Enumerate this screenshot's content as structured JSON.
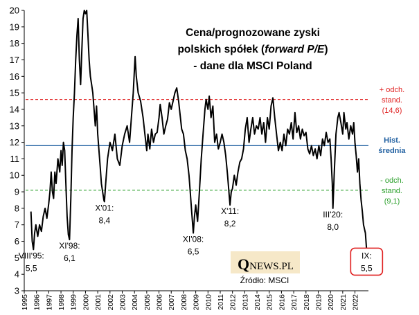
{
  "chart_data": {
    "type": "line",
    "title_lines": [
      "Cena/prognozowane zyski",
      "polskich spółek (",
      "forward P/E",
      ")",
      "- dane dla MSCI Poland"
    ],
    "xlabel": "",
    "ylabel": "",
    "xlim": [
      1995.0,
      2023.1
    ],
    "ylim": [
      3,
      20
    ],
    "yticks": [
      "3",
      "4",
      "5",
      "6",
      "7",
      "8",
      "9",
      "10",
      "11",
      "12",
      "13",
      "14",
      "15",
      "16",
      "17",
      "18",
      "19",
      "20"
    ],
    "xticks": [
      "1995",
      "1996",
      "1997",
      "1998",
      "1999",
      "2000",
      "2001",
      "2002",
      "2003",
      "2004",
      "2005",
      "2006",
      "2007",
      "2008",
      "2009",
      "2010",
      "2011",
      "2012",
      "2013",
      "2014",
      "2015",
      "2016",
      "2017",
      "2018",
      "2019",
      "2020",
      "2021",
      "2022"
    ],
    "grid": false,
    "reference_lines": [
      {
        "name": "+ odch. stand. (14,6)",
        "y": 14.6,
        "color": "#e02020",
        "style": "dashed",
        "label_lines": [
          "+ odch.",
          "stand.",
          "(14,6)"
        ]
      },
      {
        "name": "Hist. średnia",
        "y": 11.8,
        "color": "#1f5fa0",
        "style": "solid",
        "label_lines": [
          "Hist.",
          "średnia"
        ]
      },
      {
        "name": "- odch. stand. (9,1)",
        "y": 9.1,
        "color": "#2ca02c",
        "style": "dashed",
        "label_lines": [
          "- odch.",
          "stand.",
          "(9,1)"
        ]
      }
    ],
    "series": [
      {
        "color": "#000000",
        "points": [
          [
            1995.55,
            7.8
          ],
          [
            1995.65,
            6.0
          ],
          [
            1995.75,
            5.5
          ],
          [
            1995.85,
            6.5
          ],
          [
            1995.95,
            7.0
          ],
          [
            1996.1,
            6.3
          ],
          [
            1996.25,
            7.0
          ],
          [
            1996.4,
            6.6
          ],
          [
            1996.55,
            7.5
          ],
          [
            1996.7,
            8.0
          ],
          [
            1996.85,
            7.4
          ],
          [
            1997.0,
            8.3
          ],
          [
            1997.1,
            9.0
          ],
          [
            1997.2,
            10.2
          ],
          [
            1997.3,
            9.0
          ],
          [
            1997.4,
            8.6
          ],
          [
            1997.5,
            10.2
          ],
          [
            1997.6,
            9.5
          ],
          [
            1997.75,
            11.0
          ],
          [
            1997.9,
            10.2
          ],
          [
            1998.0,
            11.5
          ],
          [
            1998.1,
            10.6
          ],
          [
            1998.2,
            12.0
          ],
          [
            1998.3,
            11.5
          ],
          [
            1998.4,
            9.5
          ],
          [
            1998.5,
            7.5
          ],
          [
            1998.6,
            6.4
          ],
          [
            1998.7,
            6.1
          ],
          [
            1998.8,
            8.5
          ],
          [
            1998.9,
            11.5
          ],
          [
            1999.0,
            13.5
          ],
          [
            1999.1,
            15.0
          ],
          [
            1999.2,
            17.0
          ],
          [
            1999.3,
            18.5
          ],
          [
            1999.4,
            19.5
          ],
          [
            1999.5,
            17.0
          ],
          [
            1999.6,
            15.5
          ],
          [
            1999.7,
            17.5
          ],
          [
            1999.8,
            19.5
          ],
          [
            1999.9,
            20.0
          ],
          [
            2000.0,
            19.8
          ],
          [
            2000.1,
            20.0
          ],
          [
            2000.2,
            18.5
          ],
          [
            2000.3,
            17.0
          ],
          [
            2000.4,
            16.0
          ],
          [
            2000.5,
            15.5
          ],
          [
            2000.6,
            15.0
          ],
          [
            2000.7,
            14.0
          ],
          [
            2000.8,
            13.0
          ],
          [
            2000.9,
            14.2
          ],
          [
            2001.0,
            12.5
          ],
          [
            2001.1,
            11.5
          ],
          [
            2001.2,
            10.5
          ],
          [
            2001.3,
            9.5
          ],
          [
            2001.4,
            9.0
          ],
          [
            2001.5,
            8.5
          ],
          [
            2001.55,
            8.4
          ],
          [
            2001.65,
            9.5
          ],
          [
            2001.8,
            11.0
          ],
          [
            2002.0,
            12.0
          ],
          [
            2002.2,
            11.5
          ],
          [
            2002.4,
            12.5
          ],
          [
            2002.6,
            11.0
          ],
          [
            2002.8,
            10.6
          ],
          [
            2003.0,
            11.8
          ],
          [
            2003.2,
            12.5
          ],
          [
            2003.4,
            13.0
          ],
          [
            2003.6,
            12.0
          ],
          [
            2003.8,
            14.0
          ],
          [
            2003.9,
            15.0
          ],
          [
            2004.0,
            16.5
          ],
          [
            2004.05,
            17.2
          ],
          [
            2004.15,
            16.0
          ],
          [
            2004.3,
            15.0
          ],
          [
            2004.5,
            14.5
          ],
          [
            2004.7,
            13.5
          ],
          [
            2004.85,
            12.5
          ],
          [
            2005.0,
            11.5
          ],
          [
            2005.1,
            12.5
          ],
          [
            2005.25,
            11.6
          ],
          [
            2005.4,
            12.8
          ],
          [
            2005.55,
            12.0
          ],
          [
            2005.7,
            12.5
          ],
          [
            2005.85,
            12.6
          ],
          [
            2006.0,
            13.5
          ],
          [
            2006.1,
            14.3
          ],
          [
            2006.25,
            13.5
          ],
          [
            2006.4,
            12.5
          ],
          [
            2006.55,
            13.0
          ],
          [
            2006.7,
            13.4
          ],
          [
            2006.85,
            14.4
          ],
          [
            2007.0,
            14.0
          ],
          [
            2007.15,
            14.5
          ],
          [
            2007.3,
            15.0
          ],
          [
            2007.45,
            15.3
          ],
          [
            2007.6,
            14.5
          ],
          [
            2007.75,
            13.5
          ],
          [
            2007.85,
            12.8
          ],
          [
            2008.0,
            12.5
          ],
          [
            2008.15,
            11.5
          ],
          [
            2008.3,
            11.0
          ],
          [
            2008.45,
            10.0
          ],
          [
            2008.55,
            9.0
          ],
          [
            2008.65,
            8.0
          ],
          [
            2008.75,
            7.0
          ],
          [
            2008.8,
            6.5
          ],
          [
            2008.9,
            7.5
          ],
          [
            2009.0,
            8.2
          ],
          [
            2009.15,
            7.2
          ],
          [
            2009.3,
            9.0
          ],
          [
            2009.45,
            11.0
          ],
          [
            2009.6,
            12.5
          ],
          [
            2009.75,
            14.0
          ],
          [
            2009.85,
            14.6
          ],
          [
            2010.0,
            14.0
          ],
          [
            2010.1,
            14.8
          ],
          [
            2010.25,
            13.5
          ],
          [
            2010.4,
            14.2
          ],
          [
            2010.55,
            12.0
          ],
          [
            2010.7,
            12.5
          ],
          [
            2010.85,
            11.6
          ],
          [
            2011.0,
            12.0
          ],
          [
            2011.15,
            12.5
          ],
          [
            2011.3,
            12.0
          ],
          [
            2011.45,
            11.2
          ],
          [
            2011.6,
            10.0
          ],
          [
            2011.75,
            8.6
          ],
          [
            2011.8,
            8.2
          ],
          [
            2011.9,
            9.0
          ],
          [
            2012.0,
            9.2
          ],
          [
            2012.15,
            10.0
          ],
          [
            2012.3,
            9.4
          ],
          [
            2012.45,
            10.2
          ],
          [
            2012.6,
            10.8
          ],
          [
            2012.75,
            11.0
          ],
          [
            2012.9,
            11.6
          ],
          [
            2013.05,
            12.8
          ],
          [
            2013.2,
            13.5
          ],
          [
            2013.35,
            12.0
          ],
          [
            2013.5,
            12.8
          ],
          [
            2013.65,
            13.5
          ],
          [
            2013.8,
            12.5
          ],
          [
            2013.95,
            13.0
          ],
          [
            2014.1,
            12.8
          ],
          [
            2014.25,
            13.5
          ],
          [
            2014.4,
            12.5
          ],
          [
            2014.55,
            13.2
          ],
          [
            2014.7,
            12.0
          ],
          [
            2014.85,
            13.5
          ],
          [
            2015.0,
            12.8
          ],
          [
            2015.15,
            14.2
          ],
          [
            2015.3,
            14.7
          ],
          [
            2015.45,
            13.5
          ],
          [
            2015.6,
            12.5
          ],
          [
            2015.75,
            11.5
          ],
          [
            2015.9,
            12.0
          ],
          [
            2016.05,
            11.5
          ],
          [
            2016.2,
            12.5
          ],
          [
            2016.35,
            11.8
          ],
          [
            2016.5,
            12.8
          ],
          [
            2016.65,
            12.5
          ],
          [
            2016.8,
            13.2
          ],
          [
            2016.95,
            12.2
          ],
          [
            2017.1,
            13.8
          ],
          [
            2017.25,
            12.6
          ],
          [
            2017.4,
            13.0
          ],
          [
            2017.55,
            12.2
          ],
          [
            2017.7,
            12.8
          ],
          [
            2017.85,
            12.4
          ],
          [
            2018.0,
            12.6
          ],
          [
            2018.15,
            11.6
          ],
          [
            2018.3,
            11.3
          ],
          [
            2018.45,
            11.8
          ],
          [
            2018.6,
            11.2
          ],
          [
            2018.75,
            11.6
          ],
          [
            2018.9,
            11.0
          ],
          [
            2019.05,
            11.8
          ],
          [
            2019.2,
            11.2
          ],
          [
            2019.35,
            12.2
          ],
          [
            2019.5,
            11.8
          ],
          [
            2019.65,
            12.6
          ],
          [
            2019.8,
            12.0
          ],
          [
            2019.95,
            12.2
          ],
          [
            2020.05,
            11.0
          ],
          [
            2020.15,
            9.5
          ],
          [
            2020.2,
            8.0
          ],
          [
            2020.3,
            10.0
          ],
          [
            2020.45,
            12.5
          ],
          [
            2020.6,
            13.5
          ],
          [
            2020.7,
            13.8
          ],
          [
            2020.85,
            13.2
          ],
          [
            2021.0,
            12.5
          ],
          [
            2021.1,
            13.8
          ],
          [
            2021.25,
            12.8
          ],
          [
            2021.35,
            13.2
          ],
          [
            2021.5,
            12.2
          ],
          [
            2021.65,
            13.0
          ],
          [
            2021.8,
            12.5
          ],
          [
            2021.9,
            13.2
          ],
          [
            2022.0,
            12.0
          ],
          [
            2022.1,
            11.2
          ],
          [
            2022.2,
            10.2
          ],
          [
            2022.3,
            11.0
          ],
          [
            2022.4,
            9.5
          ],
          [
            2022.5,
            8.5
          ],
          [
            2022.6,
            7.8
          ],
          [
            2022.7,
            7.0
          ],
          [
            2022.85,
            6.5
          ],
          [
            2022.95,
            5.5
          ]
        ]
      }
    ],
    "annotations": [
      {
        "lines": [
          "VIII'95:",
          "5,5"
        ],
        "x": 1995.58,
        "y": 5.5
      },
      {
        "lines": [
          "XI'98:",
          "6,1"
        ],
        "x": 1998.7,
        "y": 6.1
      },
      {
        "lines": [
          "X'01:",
          "8,4"
        ],
        "x": 2001.55,
        "y": 8.4
      },
      {
        "lines": [
          "XI'08:",
          "6,5"
        ],
        "x": 2008.8,
        "y": 6.5
      },
      {
        "lines": [
          "X'11:",
          "8,2"
        ],
        "x": 2011.8,
        "y": 8.2
      },
      {
        "lines": [
          "III'20:",
          "8,0"
        ],
        "x": 2020.2,
        "y": 8.0
      },
      {
        "lines": [
          "IX:",
          "5,5"
        ],
        "x": 2022.95,
        "y": 5.5,
        "boxed": true,
        "box_color": "#e02020"
      }
    ]
  },
  "watermark": {
    "logo_q": "Q",
    "logo_rest": "NEWS.PL",
    "source": "Źródło: MSCI",
    "bg_color": "#f6e8c8"
  }
}
